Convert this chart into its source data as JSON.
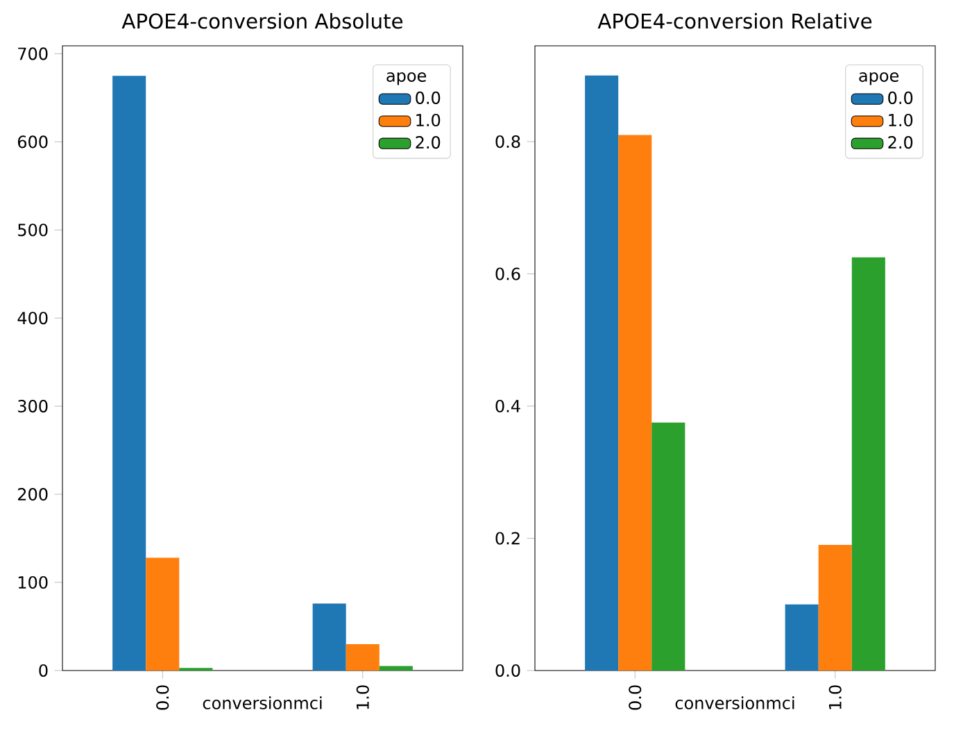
{
  "chart_data": [
    {
      "type": "bar",
      "title": "APOE4-conversion Absolute",
      "xlabel": "conversionmci",
      "categories": [
        "0.0",
        "1.0"
      ],
      "legend_title": "apoe",
      "legend": "top right",
      "series": [
        {
          "name": "0.0",
          "color": "#1f77b4",
          "values": [
            675,
            76
          ]
        },
        {
          "name": "1.0",
          "color": "#ff7f0e",
          "values": [
            128,
            30
          ]
        },
        {
          "name": "2.0",
          "color": "#2ca02c",
          "values": [
            3,
            5
          ]
        }
      ],
      "ylim": [
        0,
        709
      ],
      "yticks": [
        0,
        100,
        200,
        300,
        400,
        500,
        600,
        700
      ]
    },
    {
      "type": "bar",
      "title": "APOE4-conversion Relative",
      "xlabel": "conversionmci",
      "categories": [
        "0.0",
        "1.0"
      ],
      "legend_title": "apoe",
      "legend": "top right",
      "series": [
        {
          "name": "0.0",
          "color": "#1f77b4",
          "values": [
            0.9,
            0.1
          ]
        },
        {
          "name": "1.0",
          "color": "#ff7f0e",
          "values": [
            0.81,
            0.19
          ]
        },
        {
          "name": "2.0",
          "color": "#2ca02c",
          "values": [
            0.375,
            0.625
          ]
        }
      ],
      "ylim": [
        0,
        0.945
      ],
      "yticks": [
        {
          "value": 0,
          "label": "0.0"
        },
        {
          "value": 0.2,
          "label": "0.2"
        },
        {
          "value": 0.4,
          "label": "0.4"
        },
        {
          "value": 0.6,
          "label": "0.6"
        },
        {
          "value": 0.8,
          "label": "0.8"
        }
      ]
    }
  ]
}
